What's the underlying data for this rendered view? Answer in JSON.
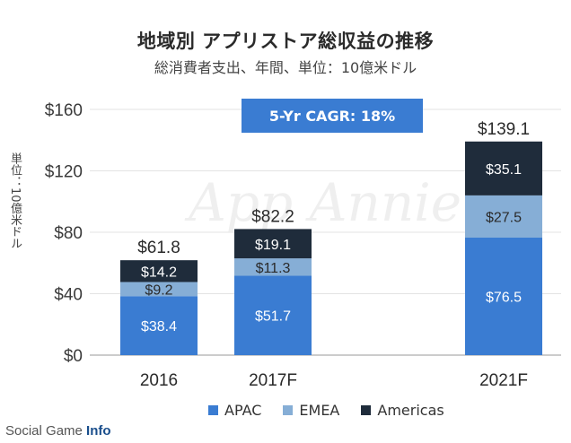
{
  "header": {
    "title": "地域別 アプリストア総収益の推移",
    "subtitle": "総消費者支出、年間、単位：10億米ドル"
  },
  "cagr_label": "5-Yr CAGR: 18%",
  "watermark": "App Annie",
  "brand": {
    "prefix": "Social Game ",
    "suffix": "Info"
  },
  "colors": {
    "APAC": "#3a7cd2",
    "EMEA": "#86aed6",
    "Americas": "#1f2c3b"
  },
  "chart_data": {
    "type": "bar",
    "stacked": true,
    "ylabel": "単位：10億米ドル",
    "ylim": [
      0,
      160
    ],
    "yticks": [
      "$0",
      "$40",
      "$80",
      "$120",
      "$160"
    ],
    "ytick_values": [
      0,
      40,
      80,
      120,
      160
    ],
    "categories": [
      "2016",
      "2017F",
      "2021F"
    ],
    "totals": [
      "$61.8",
      "$82.2",
      "$139.1"
    ],
    "total_values": [
      61.8,
      82.2,
      139.1
    ],
    "series": [
      {
        "name": "APAC",
        "values": [
          38.4,
          51.7,
          76.5
        ],
        "labels": [
          "$38.4",
          "$51.7",
          "$76.5"
        ]
      },
      {
        "name": "EMEA",
        "values": [
          9.2,
          11.3,
          27.5
        ],
        "labels": [
          "$9.2",
          "$11.3",
          "$27.5"
        ]
      },
      {
        "name": "Americas",
        "values": [
          14.2,
          19.1,
          35.1
        ],
        "labels": [
          "$14.2",
          "$19.1",
          "$35.1"
        ]
      }
    ],
    "legend": [
      "APAC",
      "EMEA",
      "Americas"
    ],
    "legend_position": "bottom"
  }
}
